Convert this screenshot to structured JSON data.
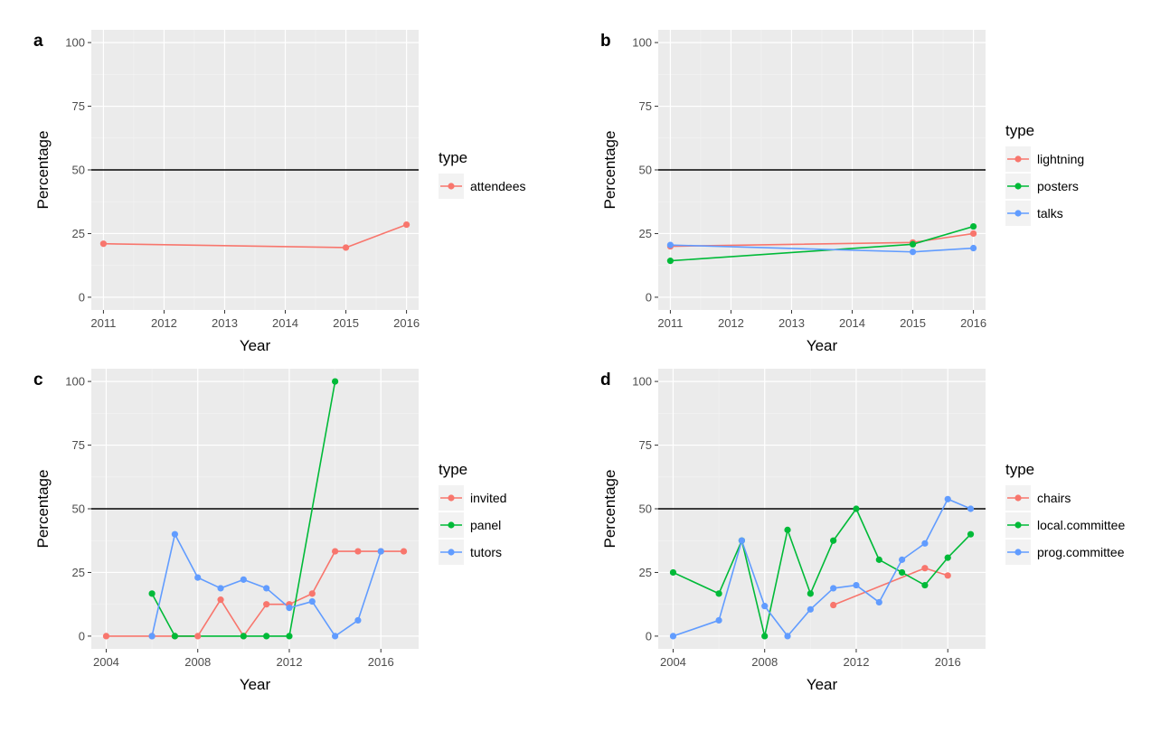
{
  "colors": {
    "panel_background": "#EBEBEB",
    "major_grid": "#FFFFFF",
    "minor_grid": "#F4F4F4",
    "reference_line": "#000000",
    "red": "#F8766D",
    "green": "#00BA38",
    "blue": "#619CFF"
  },
  "chart_data": [
    {
      "panel_label": "a",
      "type": "line",
      "xlabel": "Year",
      "ylabel": "Percentage",
      "xlim": [
        2010.8,
        2016.2
      ],
      "ylim": [
        -5,
        105
      ],
      "x_ticks": [
        2011,
        2012,
        2013,
        2014,
        2015,
        2016
      ],
      "y_ticks": [
        0,
        25,
        50,
        75,
        100
      ],
      "hline": 50,
      "grid": true,
      "legend": {
        "title": "type",
        "position": "right"
      },
      "series": [
        {
          "name": "attendees",
          "color": "#F8766D",
          "points": [
            [
              2011,
              21
            ],
            [
              2015,
              19.5
            ],
            [
              2016,
              28.5
            ]
          ]
        }
      ]
    },
    {
      "panel_label": "b",
      "type": "line",
      "xlabel": "Year",
      "ylabel": "Percentage",
      "xlim": [
        2010.8,
        2016.2
      ],
      "ylim": [
        -5,
        105
      ],
      "x_ticks": [
        2011,
        2012,
        2013,
        2014,
        2015,
        2016
      ],
      "y_ticks": [
        0,
        25,
        50,
        75,
        100
      ],
      "hline": 50,
      "grid": true,
      "legend": {
        "title": "type",
        "position": "right"
      },
      "series": [
        {
          "name": "lightning",
          "color": "#F8766D",
          "points": [
            [
              2011,
              20
            ],
            [
              2015,
              21.5
            ],
            [
              2016,
              25
            ]
          ]
        },
        {
          "name": "posters",
          "color": "#00BA38",
          "points": [
            [
              2011,
              14.3
            ],
            [
              2015,
              20.8
            ],
            [
              2016,
              27.8
            ]
          ]
        },
        {
          "name": "talks",
          "color": "#619CFF",
          "points": [
            [
              2011,
              20.5
            ],
            [
              2015,
              17.8
            ],
            [
              2016,
              19.3
            ]
          ]
        }
      ]
    },
    {
      "panel_label": "c",
      "type": "line",
      "xlabel": "Year",
      "ylabel": "Percentage",
      "xlim": [
        2003.35,
        2017.65
      ],
      "ylim": [
        -5,
        105
      ],
      "x_ticks": [
        2004,
        2008,
        2012,
        2016
      ],
      "y_ticks": [
        0,
        25,
        50,
        75,
        100
      ],
      "hline": 50,
      "grid": true,
      "legend": {
        "title": "type",
        "position": "right"
      },
      "series": [
        {
          "name": "invited",
          "color": "#F8766D",
          "points": [
            [
              2004,
              0
            ],
            [
              2006,
              0
            ],
            [
              2007,
              0
            ],
            [
              2008,
              0
            ],
            [
              2009,
              14.3
            ],
            [
              2010,
              0
            ],
            [
              2011,
              12.5
            ],
            [
              2012,
              12.5
            ],
            [
              2013,
              16.7
            ],
            [
              2014,
              33.3
            ],
            [
              2015,
              33.3
            ],
            [
              2016,
              33.3
            ],
            [
              2017,
              33.3
            ]
          ]
        },
        {
          "name": "panel",
          "color": "#00BA38",
          "points": [
            [
              2006,
              16.7
            ],
            [
              2007,
              0
            ],
            [
              2010,
              0
            ],
            [
              2011,
              0
            ],
            [
              2012,
              0
            ],
            [
              2014,
              100
            ]
          ]
        },
        {
          "name": "tutors",
          "color": "#619CFF",
          "points": [
            [
              2006,
              0
            ],
            [
              2007,
              40
            ],
            [
              2008,
              23
            ],
            [
              2009,
              18.8
            ],
            [
              2010,
              22.2
            ],
            [
              2011,
              18.8
            ],
            [
              2012,
              11.1
            ],
            [
              2013,
              13.6
            ],
            [
              2014,
              0
            ],
            [
              2015,
              6.2
            ],
            [
              2016,
              33.3
            ]
          ]
        }
      ]
    },
    {
      "panel_label": "d",
      "type": "line",
      "xlabel": "Year",
      "ylabel": "Percentage",
      "xlim": [
        2003.35,
        2017.65
      ],
      "ylim": [
        -5,
        105
      ],
      "x_ticks": [
        2004,
        2008,
        2012,
        2016
      ],
      "y_ticks": [
        0,
        25,
        50,
        75,
        100
      ],
      "hline": 50,
      "grid": true,
      "legend": {
        "title": "type",
        "position": "right"
      },
      "series": [
        {
          "name": "chairs",
          "color": "#F8766D",
          "points": [
            [
              2011,
              12.2
            ],
            [
              2015,
              26.7
            ],
            [
              2016,
              23.8
            ]
          ]
        },
        {
          "name": "local.committee",
          "color": "#00BA38",
          "points": [
            [
              2004,
              25
            ],
            [
              2006,
              16.7
            ],
            [
              2007,
              37.5
            ],
            [
              2008,
              0
            ],
            [
              2009,
              41.7
            ],
            [
              2010,
              16.7
            ],
            [
              2011,
              37.5
            ],
            [
              2012,
              50
            ],
            [
              2013,
              30
            ],
            [
              2014,
              25
            ],
            [
              2015,
              20
            ],
            [
              2016,
              30.8
            ],
            [
              2017,
              40
            ]
          ]
        },
        {
          "name": "prog.committee",
          "color": "#619CFF",
          "points": [
            [
              2004,
              0
            ],
            [
              2006,
              6.2
            ],
            [
              2007,
              37.5
            ],
            [
              2008,
              11.8
            ],
            [
              2009,
              0
            ],
            [
              2010,
              10.5
            ],
            [
              2011,
              18.8
            ],
            [
              2012,
              20
            ],
            [
              2013,
              13.3
            ],
            [
              2014,
              30
            ],
            [
              2015,
              36.4
            ],
            [
              2016,
              53.8
            ],
            [
              2017,
              50
            ]
          ]
        }
      ]
    }
  ]
}
